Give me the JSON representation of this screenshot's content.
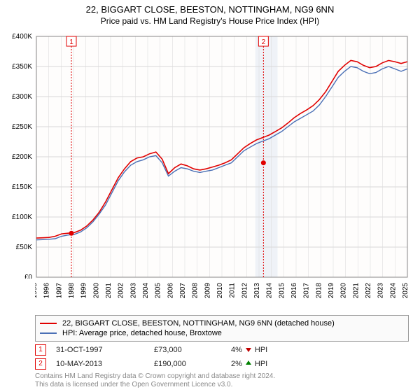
{
  "title": "22, BIGGART CLOSE, BEESTON, NOTTINGHAM, NG9 6NN",
  "subtitle": "Price paid vs. HM Land Registry's House Price Index (HPI)",
  "chart": {
    "type": "line",
    "x_axis": {
      "min": 1995,
      "max": 2025,
      "tick_step": 1,
      "tick_labels": [
        "1995",
        "1996",
        "1997",
        "1998",
        "1999",
        "2000",
        "2001",
        "2002",
        "2003",
        "2004",
        "2005",
        "2006",
        "2007",
        "2008",
        "2009",
        "2010",
        "2011",
        "2012",
        "2013",
        "2014",
        "2015",
        "2016",
        "2017",
        "2018",
        "2019",
        "2020",
        "2021",
        "2022",
        "2023",
        "2024",
        "2025"
      ],
      "label_fontsize": 10,
      "label_rotation": -90
    },
    "y_axis": {
      "min": 0,
      "max": 400000,
      "tick_step": 50000,
      "tick_labels": [
        "£0",
        "£50K",
        "£100K",
        "£150K",
        "£200K",
        "£250K",
        "£300K",
        "£350K",
        "£400K"
      ],
      "label_fontsize": 10
    },
    "grid_color": "#d8d8d8",
    "background_color": "#fefdfc",
    "shaded_band": {
      "x_start": 2012.7,
      "x_end": 2014.5,
      "color": "#e8edf5",
      "opacity": 0.7
    },
    "event_lines": [
      {
        "x": 1997.83,
        "color": "#e00000",
        "dash": "2,2",
        "label": "1"
      },
      {
        "x": 2013.36,
        "color": "#e00000",
        "dash": "2,2",
        "label": "2"
      }
    ],
    "event_markers": [
      {
        "x": 1997.83,
        "y": 73000,
        "color": "#e00000"
      },
      {
        "x": 2013.36,
        "y": 190000,
        "color": "#e00000"
      }
    ],
    "series": [
      {
        "name": "property",
        "label": "22, BIGGART CLOSE, BEESTON, NOTTINGHAM, NG9 6NN (detached house)",
        "color": "#e00000",
        "line_width": 1.6,
        "y": [
          65000,
          65500,
          66000,
          68000,
          72000,
          73000,
          74000,
          78000,
          85000,
          95000,
          108000,
          125000,
          145000,
          165000,
          180000,
          192000,
          198000,
          200000,
          205000,
          208000,
          196000,
          172000,
          182000,
          188000,
          185000,
          180000,
          178000,
          180000,
          183000,
          186000,
          190000,
          195000,
          205000,
          215000,
          222000,
          228000,
          232000,
          236000,
          242000,
          248000,
          256000,
          265000,
          272000,
          278000,
          285000,
          295000,
          308000,
          325000,
          342000,
          352000,
          360000,
          358000,
          352000,
          348000,
          350000,
          356000,
          360000,
          358000,
          355000,
          358000
        ]
      },
      {
        "name": "hpi",
        "label": "HPI: Average price, detached house, Broxtowe",
        "color": "#4a6fb5",
        "line_width": 1.4,
        "y": [
          62000,
          62500,
          63000,
          64000,
          68000,
          70000,
          71000,
          75000,
          82000,
          92000,
          105000,
          120000,
          140000,
          160000,
          175000,
          186000,
          192000,
          195000,
          200000,
          202000,
          190000,
          168000,
          176000,
          182000,
          180000,
          176000,
          174000,
          176000,
          178000,
          182000,
          186000,
          190000,
          200000,
          210000,
          216000,
          222000,
          226000,
          230000,
          236000,
          242000,
          250000,
          258000,
          264000,
          270000,
          276000,
          286000,
          300000,
          316000,
          332000,
          342000,
          350000,
          348000,
          342000,
          338000,
          340000,
          346000,
          350000,
          346000,
          342000,
          346000
        ]
      }
    ]
  },
  "legend": {
    "items": [
      {
        "color": "#e00000",
        "label": "22, BIGGART CLOSE, BEESTON, NOTTINGHAM, NG9 6NN (detached house)"
      },
      {
        "color": "#4a6fb5",
        "label": "HPI: Average price, detached house, Broxtowe"
      }
    ]
  },
  "transactions": [
    {
      "marker": "1",
      "date": "31-OCT-1997",
      "price": "£73,000",
      "delta_pct": "4%",
      "delta_dir": "down",
      "delta_label": "HPI"
    },
    {
      "marker": "2",
      "date": "10-MAY-2013",
      "price": "£190,000",
      "delta_pct": "2%",
      "delta_dir": "up",
      "delta_label": "HPI"
    }
  ],
  "footer": {
    "line1": "Contains HM Land Registry data © Crown copyright and database right 2024.",
    "line2": "This data is licensed under the Open Government Licence v3.0."
  },
  "colors": {
    "arrow_down": "#c00000",
    "arrow_up": "#008000",
    "marker_border": "#e00000",
    "legend_border": "#999999",
    "legend_bg": "#fafafa",
    "footer_text": "#888888"
  }
}
